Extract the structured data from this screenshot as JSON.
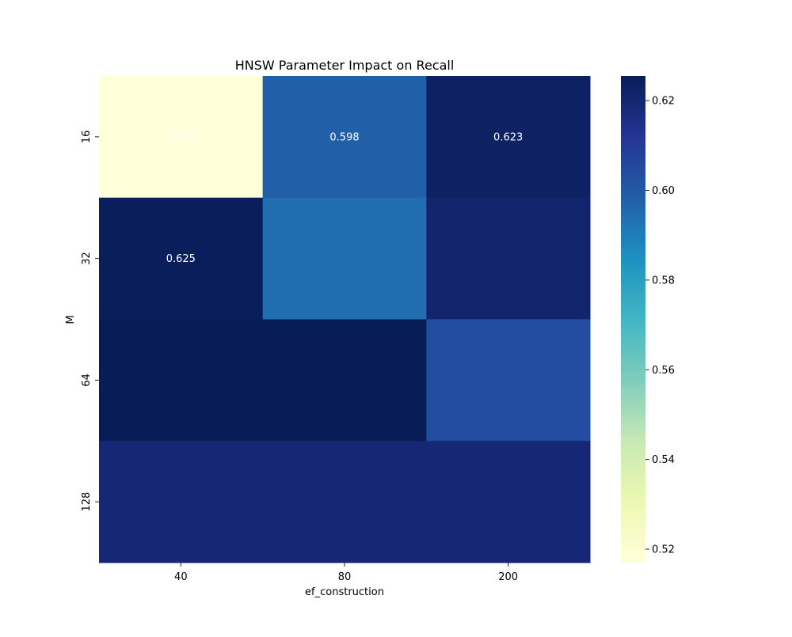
{
  "chart_data": {
    "type": "heatmap",
    "title": "HNSW Parameter Impact on Recall",
    "xlabel": "ef_construction",
    "ylabel": "M",
    "x_categories": [
      "40",
      "80",
      "200"
    ],
    "y_categories": [
      "16",
      "32",
      "64",
      "128"
    ],
    "values": [
      [
        0.517,
        0.598,
        0.623
      ],
      [
        0.625,
        0.594,
        0.621
      ],
      [
        0.626,
        0.626,
        0.604
      ],
      [
        0.619,
        0.619,
        0.619
      ]
    ],
    "annotations": [
      [
        "0.517",
        "0.598",
        "0.623"
      ],
      [
        "0.625",
        "",
        ""
      ],
      [
        "",
        "",
        ""
      ],
      [
        "",
        "",
        ""
      ]
    ],
    "colorbar": {
      "colormap": "YlGnBu",
      "vmin": 0.517,
      "vmax": 0.6255,
      "ticks": [
        0.52,
        0.54,
        0.56,
        0.58,
        0.6,
        0.62
      ],
      "tick_labels": [
        "0.52",
        "0.54",
        "0.56",
        "0.58",
        "0.60",
        "0.62"
      ]
    },
    "colors": {
      "annotation_text": "#ffffff",
      "tick_color": "#222222"
    }
  }
}
